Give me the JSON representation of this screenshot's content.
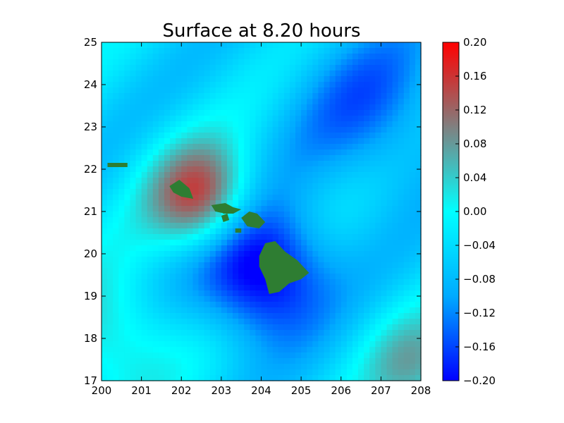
{
  "chart_data": {
    "type": "heatmap",
    "title": "Surface at 8.20 hours",
    "xlabel": "",
    "ylabel": "",
    "xlim": [
      200,
      208
    ],
    "ylim": [
      17,
      25
    ],
    "x_ticks": [
      "200",
      "201",
      "202",
      "203",
      "204",
      "205",
      "206",
      "207",
      "208"
    ],
    "y_ticks": [
      "17",
      "18",
      "19",
      "20",
      "21",
      "22",
      "23",
      "24",
      "25"
    ],
    "colorbar": {
      "vmin": -0.2,
      "vmax": 0.2,
      "ticks": [
        "0.20",
        "0.16",
        "0.12",
        "0.08",
        "0.04",
        "0.00",
        "−0.04",
        "−0.08",
        "−0.12",
        "−0.16",
        "−0.20"
      ],
      "colormap_stops": [
        "#0000ff",
        "#00aaff",
        "#00ffff",
        "#808080",
        "#ff0000"
      ]
    },
    "land_color": "#2e7d32",
    "field_features": [
      {
        "lon": 202.5,
        "lat": 21.3,
        "value": 0.2,
        "spread": 0.9
      },
      {
        "lon": 204.0,
        "lat": 19.6,
        "value": -0.2,
        "spread": 1.1
      },
      {
        "lon": 207.9,
        "lat": 17.3,
        "value": 0.1,
        "spread": 0.9
      },
      {
        "lon": 200.2,
        "lat": 18.0,
        "value": 0.09,
        "spread": 1.1
      },
      {
        "lon": 206.8,
        "lat": 23.4,
        "value": -0.09,
        "spread": 1.4
      }
    ],
    "islands": [
      {
        "name": "Niihau",
        "polygon": [
          [
            200.15,
            22.15
          ],
          [
            200.65,
            22.15
          ],
          [
            200.65,
            22.05
          ],
          [
            200.15,
            22.05
          ]
        ]
      },
      {
        "name": "Kauai",
        "polygon": [
          [
            201.7,
            21.6
          ],
          [
            201.95,
            21.75
          ],
          [
            202.2,
            21.55
          ],
          [
            202.3,
            21.3
          ],
          [
            202.0,
            21.35
          ],
          [
            201.8,
            21.45
          ]
        ]
      },
      {
        "name": "Oahu",
        "polygon": [
          [
            202.75,
            21.15
          ],
          [
            203.1,
            21.2
          ],
          [
            203.3,
            21.1
          ],
          [
            203.1,
            20.95
          ],
          [
            202.85,
            21.0
          ]
        ]
      },
      {
        "name": "Molokai",
        "polygon": [
          [
            203.0,
            21.0
          ],
          [
            203.3,
            21.1
          ],
          [
            203.5,
            21.05
          ],
          [
            203.3,
            20.95
          ],
          [
            203.05,
            20.95
          ]
        ]
      },
      {
        "name": "Lanai",
        "polygon": [
          [
            203.0,
            20.9
          ],
          [
            203.15,
            20.95
          ],
          [
            203.2,
            20.8
          ],
          [
            203.05,
            20.75
          ]
        ]
      },
      {
        "name": "Maui",
        "polygon": [
          [
            203.5,
            20.85
          ],
          [
            203.7,
            21.0
          ],
          [
            203.9,
            20.95
          ],
          [
            204.1,
            20.75
          ],
          [
            203.95,
            20.6
          ],
          [
            203.65,
            20.65
          ]
        ]
      },
      {
        "name": "Kahoolawe",
        "polygon": [
          [
            203.35,
            20.6
          ],
          [
            203.5,
            20.6
          ],
          [
            203.5,
            20.5
          ],
          [
            203.35,
            20.5
          ]
        ]
      },
      {
        "name": "Hawaii",
        "polygon": [
          [
            204.1,
            20.25
          ],
          [
            204.35,
            20.3
          ],
          [
            204.6,
            20.05
          ],
          [
            204.9,
            19.85
          ],
          [
            205.2,
            19.55
          ],
          [
            205.0,
            19.4
          ],
          [
            204.7,
            19.3
          ],
          [
            204.45,
            19.1
          ],
          [
            204.2,
            19.05
          ],
          [
            204.1,
            19.4
          ],
          [
            203.95,
            19.7
          ],
          [
            203.95,
            19.95
          ]
        ]
      }
    ]
  }
}
